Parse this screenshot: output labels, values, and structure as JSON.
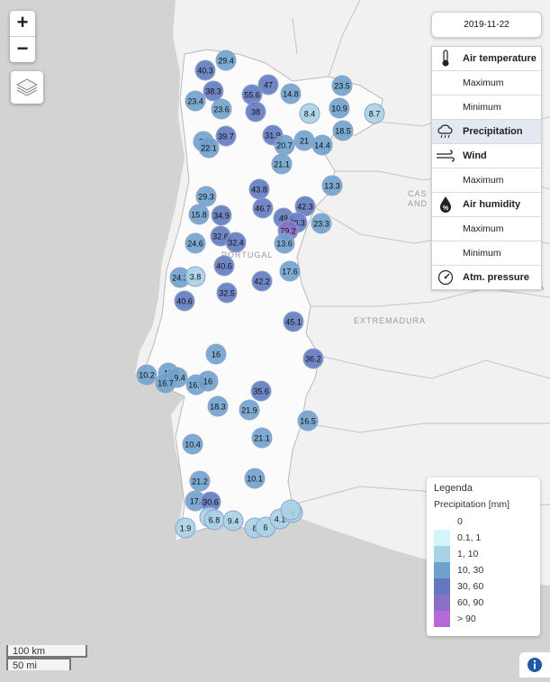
{
  "map": {
    "labels": [
      {
        "key": "castilla_1",
        "text": "CAS"
      },
      {
        "key": "castilla_2",
        "text": "AND"
      },
      {
        "key": "portugal",
        "text": "PORTUGAL"
      },
      {
        "key": "extremadura",
        "text": "EXTREMADURA"
      },
      {
        "key": "edge_a",
        "text": "A"
      }
    ]
  },
  "zoom": {
    "in_label": "+",
    "out_label": "−"
  },
  "layers_icon": "layers-icon",
  "date": {
    "value": "2019-11-22"
  },
  "parameters": [
    {
      "key": "air-temperature",
      "label": "Air temperature",
      "type": "main",
      "icon": "thermometer-icon"
    },
    {
      "key": "air-temperature-max",
      "label": "Maximum",
      "type": "sub"
    },
    {
      "key": "air-temperature-min",
      "label": "Minimum",
      "type": "sub"
    },
    {
      "key": "precipitation",
      "label": "Precipitation",
      "type": "main",
      "icon": "rain-cloud-icon",
      "active": true
    },
    {
      "key": "wind",
      "label": "Wind",
      "type": "main",
      "icon": "wind-icon"
    },
    {
      "key": "wind-max",
      "label": "Maximum",
      "type": "sub"
    },
    {
      "key": "air-humidity",
      "label": "Air humidity",
      "type": "main",
      "icon": "humidity-drop-icon"
    },
    {
      "key": "air-humidity-max",
      "label": "Maximum",
      "type": "sub"
    },
    {
      "key": "air-humidity-min",
      "label": "Minimum",
      "type": "sub"
    },
    {
      "key": "atm-pressure",
      "label": "Atm. pressure",
      "type": "main",
      "icon": "gauge-icon"
    }
  ],
  "legend": {
    "title": "Legenda",
    "subtitle": "Precipitation [mm]",
    "classes": [
      {
        "label": "0",
        "color": "#ffffff"
      },
      {
        "label": "0.1, 1",
        "color": "#d6f5fb"
      },
      {
        "label": "1, 10",
        "color": "#a8d2e6"
      },
      {
        "label": "10, 30",
        "color": "#6fa1cc"
      },
      {
        "label": "30, 60",
        "color": "#6279bf"
      },
      {
        "label": "60, 90",
        "color": "#8b6fc6"
      },
      {
        "label": "> 90",
        "color": "#b46ad8"
      }
    ]
  },
  "scale": {
    "km": "100 km",
    "mi": "50 mi"
  },
  "info_icon": "info-icon",
  "stations": [
    {
      "v": "29.4",
      "c": 3
    },
    {
      "v": "40.3",
      "c": 4
    },
    {
      "v": "38.3",
      "c": 4
    },
    {
      "v": "23.4",
      "c": 3
    },
    {
      "v": "23.6",
      "c": 3
    },
    {
      "v": "47",
      "c": 4
    },
    {
      "v": "55.6",
      "c": 4
    },
    {
      "v": "38",
      "c": 4
    },
    {
      "v": "14.8",
      "c": 3
    },
    {
      "v": "23.5",
      "c": 3
    },
    {
      "v": "8.4",
      "c": 2
    },
    {
      "v": "10.9",
      "c": 3
    },
    {
      "v": "8.7",
      "c": 2
    },
    {
      "v": "18.5",
      "c": 3
    },
    {
      "v": "22",
      "c": 3
    },
    {
      "v": "22.1",
      "c": 3
    },
    {
      "v": "39.7",
      "c": 4
    },
    {
      "v": "31.9",
      "c": 4
    },
    {
      "v": "20.7",
      "c": 3
    },
    {
      "v": "21",
      "c": 3
    },
    {
      "v": "14.4",
      "c": 3
    },
    {
      "v": "21.1",
      "c": 3
    },
    {
      "v": "13.3",
      "c": 3
    },
    {
      "v": "29.3",
      "c": 3
    },
    {
      "v": "43.8",
      "c": 4
    },
    {
      "v": "15.8",
      "c": 3
    },
    {
      "v": "34.9",
      "c": 4
    },
    {
      "v": "46.7",
      "c": 4
    },
    {
      "v": "42.3",
      "c": 4
    },
    {
      "v": "49",
      "c": 4
    },
    {
      "v": "40.3",
      "c": 4
    },
    {
      "v": "79.2",
      "c": 5
    },
    {
      "v": "23.3",
      "c": 3
    },
    {
      "v": "32.6",
      "c": 4
    },
    {
      "v": "32.4",
      "c": 4
    },
    {
      "v": "24.6",
      "c": 3
    },
    {
      "v": "13.6",
      "c": 3
    },
    {
      "v": "40.6",
      "c": 4
    },
    {
      "v": "24.3",
      "c": 3
    },
    {
      "v": "3.8",
      "c": 2
    },
    {
      "v": "17.6",
      "c": 3
    },
    {
      "v": "42.2",
      "c": 4
    },
    {
      "v": "40.6",
      "c": 4
    },
    {
      "v": "32.5",
      "c": 4
    },
    {
      "v": "45.1",
      "c": 4
    },
    {
      "v": "16",
      "c": 3
    },
    {
      "v": "36.2",
      "c": 4
    },
    {
      "v": "10.2",
      "c": 3
    },
    {
      "v": "15",
      "c": 3
    },
    {
      "v": "19.4",
      "c": 3
    },
    {
      "v": "16.7",
      "c": 3
    },
    {
      "v": "16.5",
      "c": 3
    },
    {
      "v": "16",
      "c": 3
    },
    {
      "v": "35.6",
      "c": 4
    },
    {
      "v": "18.3",
      "c": 3
    },
    {
      "v": "21.9",
      "c": 3
    },
    {
      "v": "16.5",
      "c": 3
    },
    {
      "v": "10.4",
      "c": 3
    },
    {
      "v": "21.1",
      "c": 3
    },
    {
      "v": "21.2",
      "c": 3
    },
    {
      "v": "10.1",
      "c": 3
    },
    {
      "v": "17.",
      "c": 3
    },
    {
      "v": "30.6",
      "c": 4
    },
    {
      "v": "6",
      "c": 2
    },
    {
      "v": "6.8",
      "c": 2
    },
    {
      "v": "9.4",
      "c": 2
    },
    {
      "v": "1.9",
      "c": 2
    },
    {
      "v": "8",
      "c": 2
    },
    {
      "v": "6",
      "c": 2
    },
    {
      "v": "4.1",
      "c": 2
    },
    {
      "v": "4",
      "c": 2
    },
    {
      "v": "",
      "c": 2
    }
  ]
}
